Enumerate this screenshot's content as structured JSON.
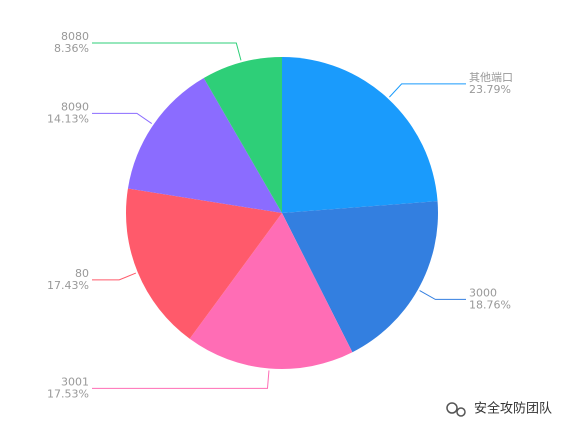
{
  "chart_data": {
    "type": "pie",
    "categories": [
      "其他端口",
      "3000",
      "3001",
      "80",
      "8090",
      "8080"
    ],
    "values": [
      23.79,
      18.76,
      17.53,
      17.43,
      14.13,
      8.36
    ],
    "value_labels": [
      "23.79%",
      "18.76%",
      "17.53%",
      "17.43%",
      "14.13%",
      "8.36%"
    ],
    "colors": [
      "#1a9bfc",
      "#337fe0",
      "#ff6db5",
      "#ff5a6b",
      "#8b6cff",
      "#2ecf78"
    ]
  },
  "watermark": "安全攻防团队"
}
